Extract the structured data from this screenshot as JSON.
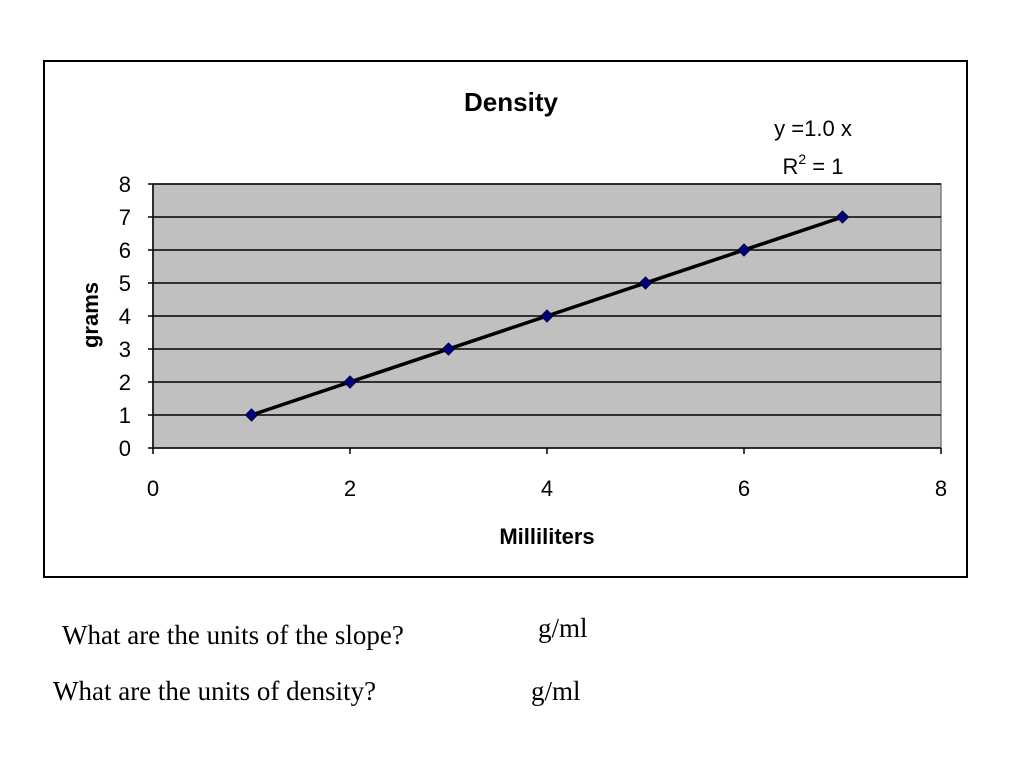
{
  "chart_data": {
    "type": "scatter",
    "title": "Density",
    "xlabel": "Milliliters",
    "ylabel": "grams",
    "xlim": [
      0,
      8
    ],
    "ylim": [
      0,
      8
    ],
    "x_ticks": [
      0,
      2,
      4,
      6,
      8
    ],
    "y_ticks": [
      0,
      1,
      2,
      3,
      4,
      5,
      6,
      7,
      8
    ],
    "grid": "horizontal",
    "plot_background": "#c0c0c0",
    "marker_color": "#000080",
    "line_color": "#000000",
    "series": [
      {
        "x": [
          1,
          2,
          3,
          4,
          5,
          6,
          7
        ],
        "y": [
          1,
          2,
          3,
          4,
          5,
          6,
          7
        ]
      }
    ],
    "trendline": {
      "slope": 1.0,
      "intercept": 0,
      "equation_label": "y =1.0 x",
      "r2_prefix": "R",
      "r2_sup": "2",
      "r2_value": " = 1"
    }
  },
  "questions": [
    {
      "question": "What are the units of the slope?",
      "answer": "g/ml"
    },
    {
      "question": "What are the units of density?",
      "answer": "g/ml"
    }
  ]
}
